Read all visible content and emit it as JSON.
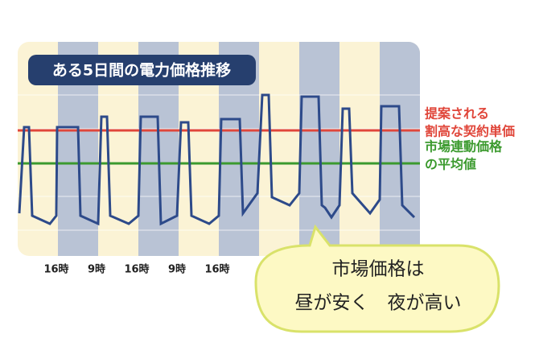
{
  "chart_data": {
    "type": "line",
    "title": "ある5日間の電力価格推移",
    "xlim": [
      0,
      500
    ],
    "xticks": [
      {
        "value": 48,
        "label": "16時"
      },
      {
        "value": 98,
        "label": "9時"
      },
      {
        "value": 148,
        "label": "16時"
      },
      {
        "value": 198,
        "label": "9時"
      },
      {
        "value": 248,
        "label": "16時"
      }
    ],
    "ylim": [
      0,
      100
    ],
    "x": [
      2,
      8,
      14,
      18,
      40,
      48,
      49,
      75,
      78,
      100,
      104,
      111,
      115,
      138,
      150,
      153,
      174,
      178,
      198,
      203,
      212,
      216,
      238,
      250,
      253,
      276,
      280,
      298,
      304,
      312,
      316,
      338,
      350,
      353,
      374,
      378,
      382,
      390,
      400,
      404,
      412,
      416,
      438,
      450,
      452,
      474,
      478,
      493
    ],
    "series": [
      {
        "color": "#2d4a8a",
        "values": [
          17.5,
          71,
          71,
          16,
          11,
          16,
          71,
          71,
          16,
          11,
          77.5,
          77.5,
          16,
          11,
          16,
          77.5,
          77.5,
          11,
          16,
          74,
          74,
          16,
          11,
          16,
          76,
          76,
          17.5,
          30,
          91,
          91,
          27.5,
          22.5,
          30,
          90,
          90,
          22.5,
          21,
          15,
          22.5,
          82.5,
          82.5,
          30,
          17.5,
          26,
          84,
          84,
          22.5,
          15
        ]
      }
    ],
    "reference_lines": [
      {
        "value": 69,
        "color": "#e0463a",
        "label": [
          "提案される",
          "割高な契約単価"
        ]
      },
      {
        "value": 48.5,
        "color": "#3b9a2e",
        "label": [
          "市場連動価格",
          "の平均値"
        ]
      }
    ],
    "annotation": [
      "市場価格は",
      "昼が安く　夜が高い"
    ]
  }
}
